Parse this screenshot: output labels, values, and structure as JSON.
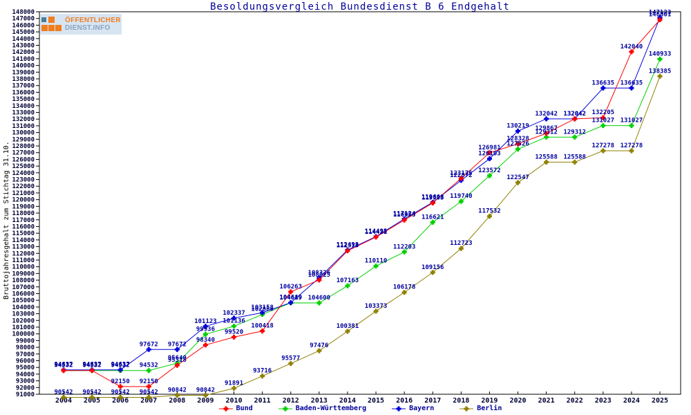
{
  "logo": {
    "line1": "ÖFFENTLICHER",
    "line2": "DIENST.INFO"
  },
  "chart_data": {
    "type": "line",
    "title": "Besoldungsvergleich Bundesdienst B 6 Endgehalt",
    "xlabel": "",
    "ylabel": "Bruttojahresgehalt zum Stichtag 31.10.",
    "ylim": [
      91000,
      148000
    ],
    "ytick_step": 1000,
    "grid": false,
    "legend_position": "bottom",
    "x": [
      2004,
      2005,
      2006,
      2007,
      2008,
      2009,
      2010,
      2011,
      2012,
      2013,
      2014,
      2015,
      2016,
      2017,
      2018,
      2019,
      2020,
      2021,
      2022,
      2023,
      2024,
      2025
    ],
    "series": [
      {
        "name": "Bund",
        "color": "#ff0000",
        "values": [
          94532,
          94532,
          92150,
          92150,
          95318,
          98340,
          99520,
          100418,
          106263,
          108025,
          112373,
          114421,
          116953,
          119503,
          123175,
          126981,
          128328,
          129867,
          132042,
          132205,
          142040,
          146801
        ]
      },
      {
        "name": "Baden-Württemberg",
        "color": "#00d000",
        "values": [
          94532,
          94532,
          94532,
          94532,
          95640,
          99936,
          101136,
          102886,
          104619,
          104600,
          107163,
          110110,
          112203,
          116621,
          119740,
          123572,
          127526,
          129312,
          129312,
          131027,
          131027,
          140933
        ]
      },
      {
        "name": "Bayern",
        "color": "#0000dd",
        "values": [
          94637,
          94637,
          94637,
          97672,
          97672,
          101123,
          102337,
          103158,
          104649,
          108326,
          112498,
          114495,
          117124,
          119608,
          122872,
          126103,
          130219,
          132042,
          132042,
          136635,
          136635,
          147123
        ]
      },
      {
        "name": "Berlin",
        "color": "#8f8000",
        "values": [
          90542,
          90542,
          90542,
          90542,
          90842,
          90842,
          91891,
          93716,
          95577,
          97476,
          100381,
          103373,
          106178,
          109156,
          112723,
          117532,
          122547,
          125588,
          125588,
          127278,
          127278,
          138385
        ]
      }
    ],
    "colors": {
      "point_label_text": "#0000a0",
      "tick_text": "#000033",
      "axis": "#000000",
      "title_text": "#000099"
    }
  }
}
